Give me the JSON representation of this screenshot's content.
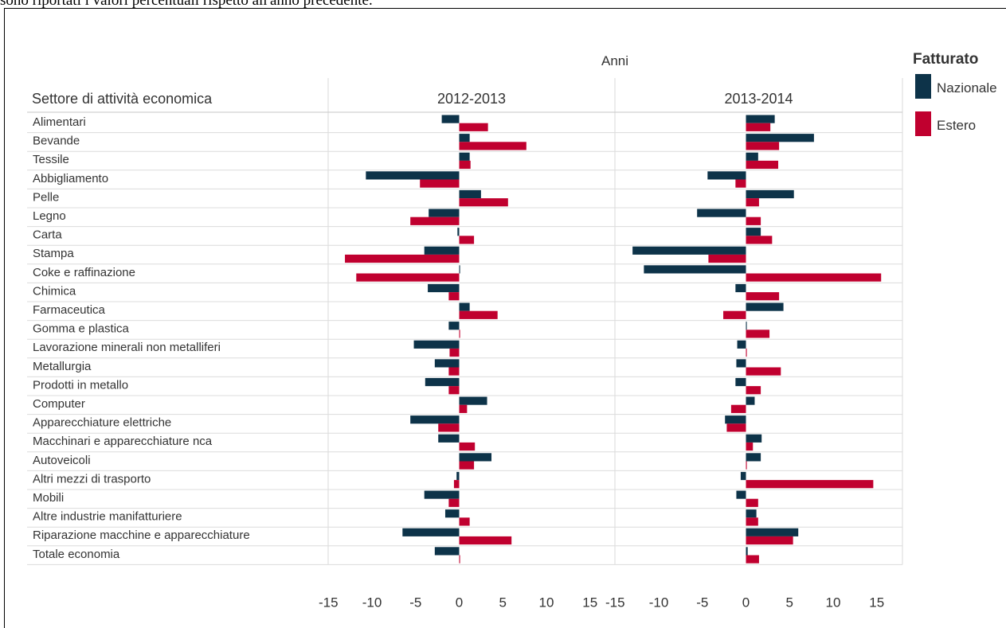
{
  "caption": "sono riportati i valori percentuali rispetto all'anno precedente.",
  "chart_data": {
    "type": "bar",
    "orientation": "horizontal",
    "column_group_title": "Anni",
    "row_header": "Settore di attività economica",
    "legend_title": "Fatturato",
    "legend_position": "top-right",
    "xlim": [
      -15,
      15
    ],
    "xticks": [
      -15,
      -10,
      -5,
      0,
      5,
      10,
      15
    ],
    "grid": false,
    "categories": [
      "Alimentari",
      "Bevande",
      "Tessile",
      "Abbigliamento",
      "Pelle",
      "Legno",
      "Carta",
      "Stampa",
      "Coke e raffinazione",
      "Chimica",
      "Farmaceutica",
      "Gomma e plastica",
      "Lavorazione minerali non metalliferi",
      "Metallurgia",
      "Prodotti in metallo",
      "Computer",
      "Apparecchiature elettriche",
      "Macchinari e apparecchiature nca",
      "Autoveicoli",
      "Altri mezzi di trasporto",
      "Mobili",
      "Altre industrie manifatturiere",
      "Riparazione macchine e apparecchiature",
      "Totale economia"
    ],
    "panels": [
      {
        "title": "2012-2013",
        "series": [
          {
            "name": "Nazionale",
            "color": "#0d3349",
            "values": [
              -2.0,
              1.2,
              1.2,
              -10.7,
              2.5,
              -3.5,
              -0.2,
              -4.0,
              0.1,
              -3.6,
              1.2,
              -1.2,
              -5.2,
              -2.8,
              -3.9,
              3.2,
              -5.6,
              -2.4,
              3.7,
              -0.3,
              -4.0,
              -1.6,
              -6.5,
              -2.8
            ]
          },
          {
            "name": "Estero",
            "color": "#c0002f",
            "values": [
              3.3,
              7.7,
              1.3,
              -4.5,
              5.6,
              -5.6,
              1.7,
              -13.1,
              -11.8,
              -1.2,
              4.4,
              0.1,
              -1.1,
              -1.2,
              -1.2,
              0.9,
              -2.4,
              1.8,
              1.7,
              -0.6,
              -1.2,
              1.2,
              6.0,
              0.1
            ]
          }
        ]
      },
      {
        "title": "2013-2014",
        "series": [
          {
            "name": "Nazionale",
            "color": "#0d3349",
            "values": [
              3.3,
              7.8,
              1.4,
              -4.4,
              5.5,
              -5.6,
              1.7,
              -13.0,
              -11.7,
              -1.2,
              4.3,
              0.1,
              -1.0,
              -1.1,
              -1.2,
              1.0,
              -2.4,
              1.8,
              1.7,
              -0.6,
              -1.1,
              1.2,
              6.0,
              0.2
            ]
          },
          {
            "name": "Estero",
            "color": "#c0002f",
            "values": [
              2.8,
              3.8,
              3.7,
              -1.2,
              1.5,
              1.7,
              3.0,
              -4.3,
              15.5,
              3.8,
              -2.6,
              2.7,
              0.1,
              4.0,
              1.7,
              -1.7,
              -2.2,
              0.8,
              0.1,
              14.6,
              1.4,
              1.4,
              5.4,
              1.5
            ]
          }
        ]
      }
    ]
  }
}
